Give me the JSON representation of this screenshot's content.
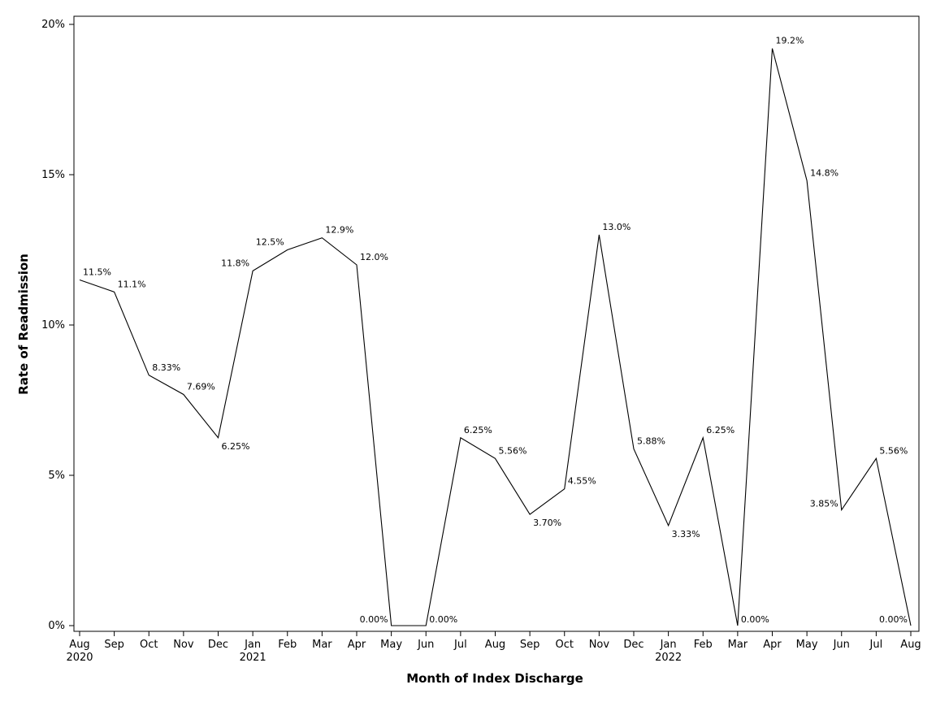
{
  "chart_data": {
    "type": "line",
    "title": "",
    "xlabel": "Month of Index Discharge",
    "ylabel": "Rate of Readmission",
    "ylim": [
      0,
      20
    ],
    "yticks": [
      "0%",
      "5%",
      "10%",
      "15%",
      "20%"
    ],
    "grid": false,
    "categories": [
      "Aug",
      "Sep",
      "Oct",
      "Nov",
      "Dec",
      "Jan",
      "Feb",
      "Mar",
      "Apr",
      "May",
      "Jun",
      "Jul",
      "Aug",
      "Sep",
      "Oct",
      "Nov",
      "Dec",
      "Jan",
      "Feb",
      "Mar",
      "Apr",
      "May",
      "Jun",
      "Jul",
      "Aug"
    ],
    "year_labels": [
      "2020",
      "",
      "",
      "",
      "",
      "2021",
      "",
      "",
      "",
      "",
      "",
      "",
      "",
      "",
      "",
      "",
      "",
      "2022",
      "",
      "",
      "",
      "",
      "",
      "",
      ""
    ],
    "series": [
      {
        "values": [
          11.5,
          11.1,
          8.33,
          7.69,
          6.25,
          11.8,
          12.5,
          12.9,
          12.0,
          0.0,
          0.0,
          6.25,
          5.56,
          3.7,
          4.55,
          13.0,
          5.88,
          3.33,
          6.25,
          0.0,
          19.2,
          14.8,
          3.85,
          5.56,
          0.0
        ],
        "labels": [
          "11.5%",
          "11.1%",
          "8.33%",
          "7.69%",
          "6.25%",
          "11.8%",
          "12.5%",
          "12.9%",
          "12.0%",
          "0.00%",
          "0.00%",
          "6.25%",
          "5.56%",
          "3.70%",
          "4.55%",
          "13.0%",
          "5.88%",
          "3.33%",
          "6.25%",
          "0.00%",
          "19.2%",
          "14.8%",
          "3.85%",
          "5.56%",
          "0.00%"
        ]
      }
    ]
  }
}
